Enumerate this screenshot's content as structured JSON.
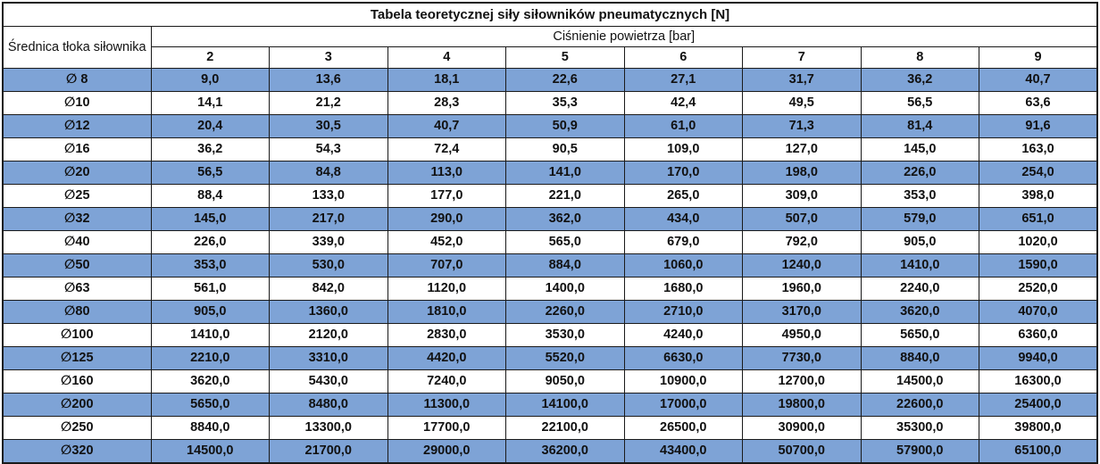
{
  "colors": {
    "highlight": "#7EA3D6",
    "grid": "#1a1a1a"
  },
  "table": {
    "title": "Tabela teoretycznej siły siłowników pneumatycznych [N]",
    "row_header": "Średnica tłoka siłownika",
    "col_group_header": "Ciśnienie powietrza [bar]",
    "pressures": [
      "2",
      "3",
      "4",
      "5",
      "6",
      "7",
      "8",
      "9"
    ],
    "rows": [
      {
        "diameter": "∅ 8",
        "values": [
          "9,0",
          "13,6",
          "18,1",
          "22,6",
          "27,1",
          "31,7",
          "36,2",
          "40,7"
        ]
      },
      {
        "diameter": "∅10",
        "values": [
          "14,1",
          "21,2",
          "28,3",
          "35,3",
          "42,4",
          "49,5",
          "56,5",
          "63,6"
        ]
      },
      {
        "diameter": "∅12",
        "values": [
          "20,4",
          "30,5",
          "40,7",
          "50,9",
          "61,0",
          "71,3",
          "81,4",
          "91,6"
        ]
      },
      {
        "diameter": "∅16",
        "values": [
          "36,2",
          "54,3",
          "72,4",
          "90,5",
          "109,0",
          "127,0",
          "145,0",
          "163,0"
        ]
      },
      {
        "diameter": "∅20",
        "values": [
          "56,5",
          "84,8",
          "113,0",
          "141,0",
          "170,0",
          "198,0",
          "226,0",
          "254,0"
        ]
      },
      {
        "diameter": "∅25",
        "values": [
          "88,4",
          "133,0",
          "177,0",
          "221,0",
          "265,0",
          "309,0",
          "353,0",
          "398,0"
        ]
      },
      {
        "diameter": "∅32",
        "values": [
          "145,0",
          "217,0",
          "290,0",
          "362,0",
          "434,0",
          "507,0",
          "579,0",
          "651,0"
        ]
      },
      {
        "diameter": "∅40",
        "values": [
          "226,0",
          "339,0",
          "452,0",
          "565,0",
          "679,0",
          "792,0",
          "905,0",
          "1020,0"
        ]
      },
      {
        "diameter": "∅50",
        "values": [
          "353,0",
          "530,0",
          "707,0",
          "884,0",
          "1060,0",
          "1240,0",
          "1410,0",
          "1590,0"
        ]
      },
      {
        "diameter": "∅63",
        "values": [
          "561,0",
          "842,0",
          "1120,0",
          "1400,0",
          "1680,0",
          "1960,0",
          "2240,0",
          "2520,0"
        ]
      },
      {
        "diameter": "∅80",
        "values": [
          "905,0",
          "1360,0",
          "1810,0",
          "2260,0",
          "2710,0",
          "3170,0",
          "3620,0",
          "4070,0"
        ]
      },
      {
        "diameter": "∅100",
        "values": [
          "1410,0",
          "2120,0",
          "2830,0",
          "3530,0",
          "4240,0",
          "4950,0",
          "5650,0",
          "6360,0"
        ]
      },
      {
        "diameter": "∅125",
        "values": [
          "2210,0",
          "3310,0",
          "4420,0",
          "5520,0",
          "6630,0",
          "7730,0",
          "8840,0",
          "9940,0"
        ]
      },
      {
        "diameter": "∅160",
        "values": [
          "3620,0",
          "5430,0",
          "7240,0",
          "9050,0",
          "10900,0",
          "12700,0",
          "14500,0",
          "16300,0"
        ]
      },
      {
        "diameter": "∅200",
        "values": [
          "5650,0",
          "8480,0",
          "11300,0",
          "14100,0",
          "17000,0",
          "19800,0",
          "22600,0",
          "25400,0"
        ]
      },
      {
        "diameter": "∅250",
        "values": [
          "8840,0",
          "13300,0",
          "17700,0",
          "22100,0",
          "26500,0",
          "30900,0",
          "35300,0",
          "39800,0"
        ]
      },
      {
        "diameter": "∅320",
        "values": [
          "14500,0",
          "21700,0",
          "29000,0",
          "36200,0",
          "43400,0",
          "50700,0",
          "57900,0",
          "65100,0"
        ]
      }
    ]
  }
}
